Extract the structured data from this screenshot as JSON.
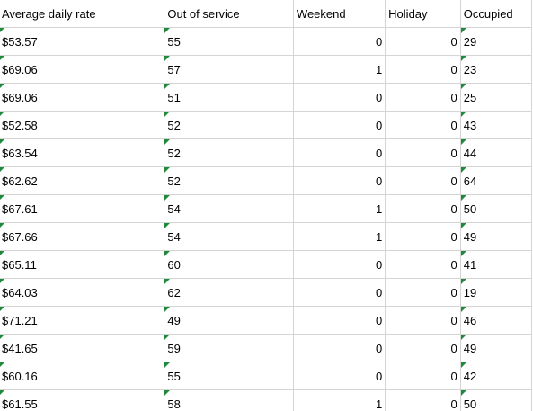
{
  "headers": {
    "average_daily_rate": "Average daily rate",
    "out_of_service": "Out of service",
    "weekend": "Weekend",
    "holiday": "Holiday",
    "occupied": "Occupied"
  },
  "rows": [
    {
      "adr": "$53.57",
      "oos": "55",
      "weekend": "0",
      "holiday": "0",
      "occupied": "29"
    },
    {
      "adr": "$69.06",
      "oos": "57",
      "weekend": "1",
      "holiday": "0",
      "occupied": "23"
    },
    {
      "adr": "$69.06",
      "oos": "51",
      "weekend": "0",
      "holiday": "0",
      "occupied": "25"
    },
    {
      "adr": "$52.58",
      "oos": "52",
      "weekend": "0",
      "holiday": "0",
      "occupied": "43"
    },
    {
      "adr": "$63.54",
      "oos": "52",
      "weekend": "0",
      "holiday": "0",
      "occupied": "44"
    },
    {
      "adr": "$62.62",
      "oos": "52",
      "weekend": "0",
      "holiday": "0",
      "occupied": "64"
    },
    {
      "adr": "$67.61",
      "oos": "54",
      "weekend": "1",
      "holiday": "0",
      "occupied": "50"
    },
    {
      "adr": "$67.66",
      "oos": "54",
      "weekend": "1",
      "holiday": "0",
      "occupied": "49"
    },
    {
      "adr": "$65.11",
      "oos": "60",
      "weekend": "0",
      "holiday": "0",
      "occupied": "41"
    },
    {
      "adr": "$64.03",
      "oos": "62",
      "weekend": "0",
      "holiday": "0",
      "occupied": "19"
    },
    {
      "adr": "$71.21",
      "oos": "49",
      "weekend": "0",
      "holiday": "0",
      "occupied": "46"
    },
    {
      "adr": "$41.65",
      "oos": "59",
      "weekend": "0",
      "holiday": "0",
      "occupied": "49"
    },
    {
      "adr": "$60.16",
      "oos": "55",
      "weekend": "0",
      "holiday": "0",
      "occupied": "42"
    },
    {
      "adr": "$61.55",
      "oos": "58",
      "weekend": "1",
      "holiday": "0",
      "occupied": "50"
    }
  ],
  "colors": {
    "gridline": "#d4d4d4",
    "error_indicator": "#1f8a3c"
  },
  "icons": {
    "error_indicator": "green-triangle-icon"
  }
}
